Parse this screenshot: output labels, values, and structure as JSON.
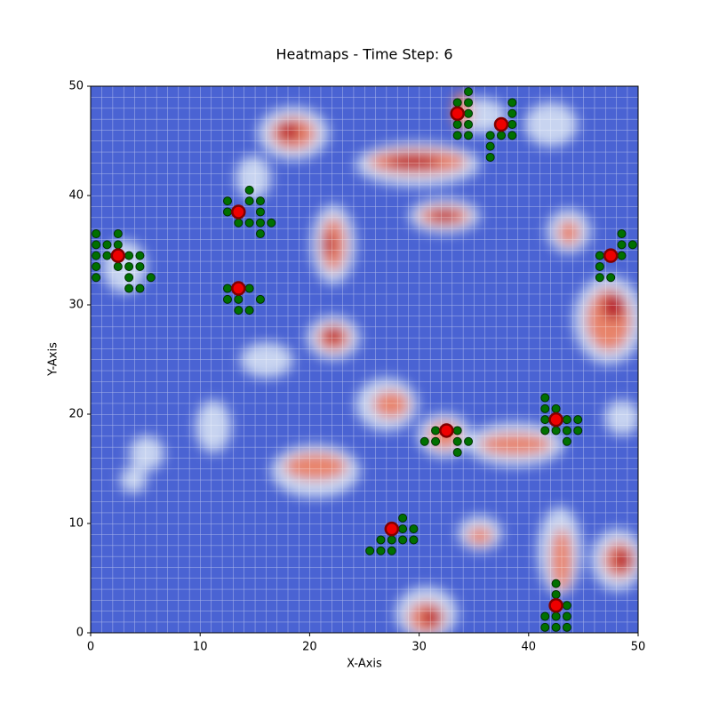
{
  "chart_data": {
    "type": "scatter",
    "title": "Heatmaps - Time Step: 6",
    "x_label": "X-Axis",
    "y_label": "Y-Axis",
    "xlim": [
      0,
      50
    ],
    "ylim": [
      0,
      50
    ],
    "xticks": [
      0,
      10,
      20,
      30,
      40,
      50
    ],
    "yticks": [
      0,
      10,
      20,
      30,
      40,
      50
    ],
    "series": [
      {
        "color": "#007000",
        "x": [
          0.5,
          2.5,
          0.5,
          1.5,
          2.5,
          0.5,
          1.5,
          3.5,
          4.5,
          0.5,
          2.5,
          3.5,
          4.5,
          0.5,
          3.5,
          5.5,
          3.5,
          4.5,
          14.5,
          12.5,
          14.5,
          15.5,
          12.5,
          15.5,
          13.5,
          14.5,
          15.5,
          16.5,
          15.5,
          12.5,
          14.5,
          12.5,
          13.5,
          15.5,
          13.5,
          14.5,
          34.5,
          33.5,
          34.5,
          34.5,
          33.5,
          34.5,
          33.5,
          34.5,
          38.5,
          38.5,
          38.5,
          36.5,
          37.5,
          38.5,
          36.5,
          36.5,
          48.5,
          48.5,
          49.5,
          46.5,
          48.5,
          46.5,
          46.5,
          47.5,
          31.5,
          33.5,
          30.5,
          31.5,
          33.5,
          34.5,
          33.5,
          41.5,
          41.5,
          42.5,
          41.5,
          43.5,
          44.5,
          41.5,
          42.5,
          43.5,
          44.5,
          43.5,
          28.5,
          28.5,
          29.5,
          26.5,
          27.5,
          28.5,
          29.5,
          25.5,
          26.5,
          27.5,
          42.5,
          42.5,
          43.5,
          41.5,
          42.5,
          43.5,
          41.5,
          42.5,
          43.5
        ],
        "y": [
          36.5,
          36.5,
          35.5,
          35.5,
          35.5,
          34.5,
          34.5,
          34.5,
          34.5,
          33.5,
          33.5,
          33.5,
          33.5,
          32.5,
          32.5,
          32.5,
          31.5,
          31.5,
          40.5,
          39.5,
          39.5,
          39.5,
          38.5,
          38.5,
          37.5,
          37.5,
          37.5,
          37.5,
          36.5,
          31.5,
          31.5,
          30.5,
          30.5,
          30.5,
          29.5,
          29.5,
          49.5,
          48.5,
          48.5,
          47.5,
          46.5,
          46.5,
          45.5,
          45.5,
          48.5,
          47.5,
          46.5,
          45.5,
          45.5,
          45.5,
          44.5,
          43.5,
          36.5,
          35.5,
          35.5,
          34.5,
          34.5,
          33.5,
          32.5,
          32.5,
          18.5,
          18.5,
          17.5,
          17.5,
          17.5,
          17.5,
          16.5,
          21.5,
          20.5,
          20.5,
          19.5,
          19.5,
          19.5,
          18.5,
          18.5,
          18.5,
          18.5,
          17.5,
          10.5,
          9.5,
          9.5,
          8.5,
          8.5,
          8.5,
          8.5,
          7.5,
          7.5,
          7.5,
          4.5,
          3.5,
          2.5,
          1.5,
          1.5,
          1.5,
          0.5,
          0.5,
          0.5
        ]
      },
      {
        "color": "#ee0000",
        "x": [
          2.5,
          13.5,
          13.5,
          33.5,
          37.5,
          47.5,
          32.5,
          42.5,
          27.5,
          42.5
        ],
        "y": [
          34.5,
          38.5,
          31.5,
          47.5,
          46.5,
          34.5,
          18.5,
          19.5,
          9.5,
          2.5
        ]
      }
    ]
  }
}
